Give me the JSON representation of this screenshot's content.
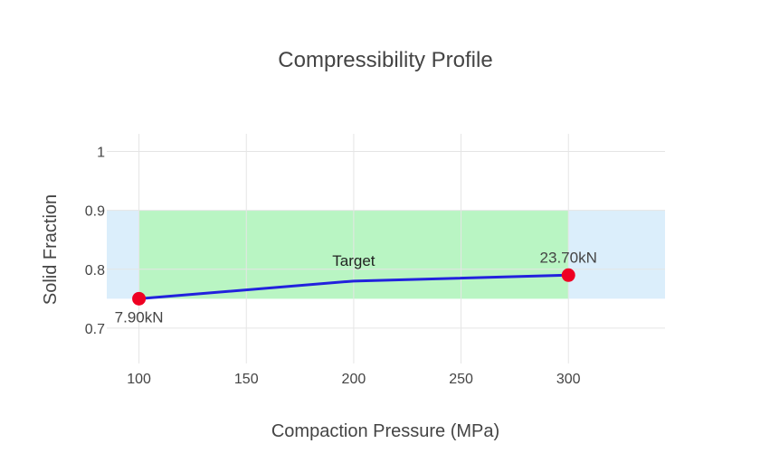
{
  "chart_data": {
    "type": "line",
    "title": "Compressibility Profile",
    "xlabel": "Compaction Pressure (MPa)",
    "ylabel": "Solid Fraction",
    "xlim": [
      85,
      345
    ],
    "ylim": [
      0.64,
      1.03
    ],
    "x_ticks": [
      100,
      150,
      200,
      250,
      300
    ],
    "y_ticks": [
      0.7,
      0.8,
      0.9,
      1
    ],
    "y_tick_labels": [
      "0.7",
      "0.8",
      "0.9",
      "1"
    ],
    "grid": true,
    "series": [
      {
        "x": [
          100,
          200,
          300
        ],
        "y": [
          0.75,
          0.78,
          0.79
        ],
        "line_color": "#2222dd",
        "marker_color": "#ee0022",
        "markers_at": [
          0,
          2
        ]
      }
    ],
    "point_labels": [
      {
        "x": 100,
        "y": 0.75,
        "text": "7.90kN",
        "position": "below"
      },
      {
        "x": 300,
        "y": 0.79,
        "text": "23.70kN",
        "position": "above"
      }
    ],
    "regions": [
      {
        "x0": null,
        "x1": null,
        "y0": 0.75,
        "y1": 0.9,
        "color": "#dbeefb"
      },
      {
        "x0": 100,
        "x1": 300,
        "y0": 0.75,
        "y1": 0.9,
        "color": "#b9f5c3"
      }
    ],
    "annotations": [
      {
        "x": 200,
        "y": 0.815,
        "text": "Target"
      }
    ]
  }
}
